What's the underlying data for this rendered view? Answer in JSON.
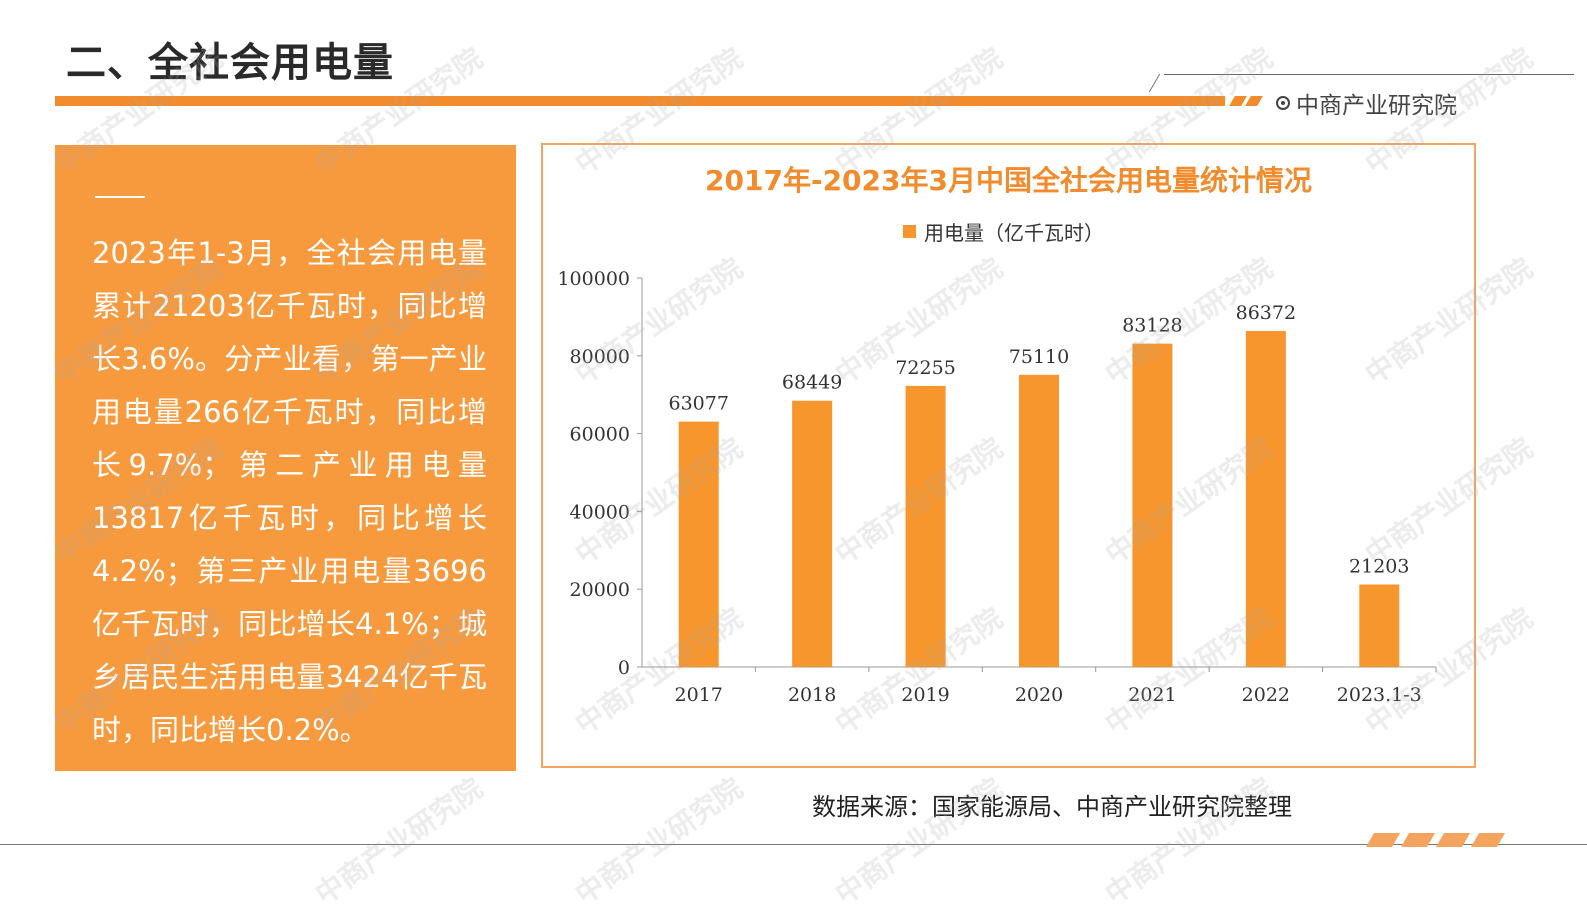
{
  "page": {
    "title": "二、全社会用电量",
    "brand": "中商产业研究院",
    "watermark": "中商产业研究院",
    "source": "数据来源：国家能源局、中商产业研究院整理"
  },
  "panel": {
    "text": "2023年1-3月，全社会用电量累计21203亿千瓦时，同比增长3.6%。分产业看，第一产业用电量266亿千瓦时，同比增长9.7%；第二产业用电量13817亿千瓦时，同比增长4.2%；第三产业用电量3696亿千瓦时，同比增长4.1%；城乡居民生活用电量3424亿千瓦时，同比增长0.2%。"
  },
  "colors": {
    "accent": "#f28b2c",
    "panel": "#f79a3e",
    "bar": "#f7962c"
  },
  "chart_data": {
    "type": "bar",
    "title": "2017年-2023年3月中国全社会用电量统计情况",
    "categories": [
      "2017",
      "2018",
      "2019",
      "2020",
      "2021",
      "2022",
      "2023.1-3"
    ],
    "series": [
      {
        "name": "用电量（亿千瓦时）",
        "values": [
          63077,
          68449,
          72255,
          75110,
          83128,
          86372,
          21203
        ]
      }
    ],
    "ylim": [
      0,
      100000
    ],
    "yticks": [
      "0",
      "20000",
      "40000",
      "60000",
      "80000",
      "100000"
    ],
    "xlabel": "",
    "ylabel": "",
    "grid": false,
    "legend": "top-center"
  }
}
